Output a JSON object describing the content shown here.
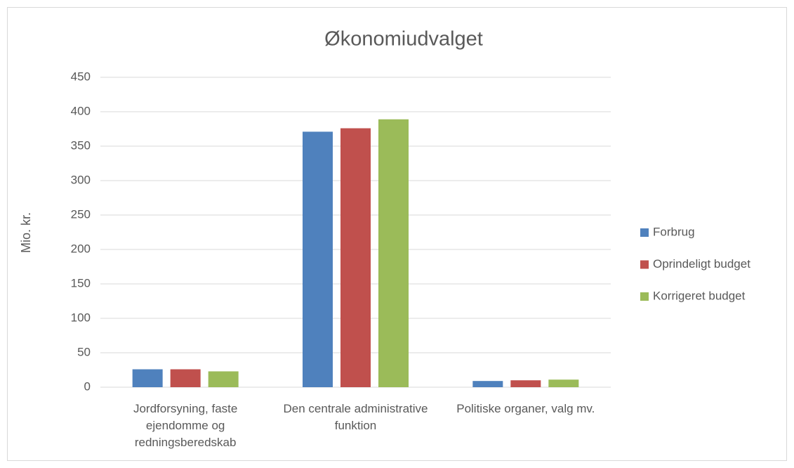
{
  "chart_data": {
    "type": "bar",
    "title": "Økonomiudvalget",
    "y_label": "Mio. kr.",
    "categories": [
      "Jordforsyning, faste ejendomme og redningsberedskab",
      "Den centrale administrative funktion",
      "Politiske organer, valg mv."
    ],
    "series": [
      {
        "name": "Forbrug",
        "color": "#4f81bd",
        "values": [
          26,
          371,
          9
        ]
      },
      {
        "name": "Oprindeligt budget",
        "color": "#c0504d",
        "values": [
          26,
          376,
          10
        ]
      },
      {
        "name": "Korrigeret budget",
        "color": "#9bbb59",
        "values": [
          23,
          389,
          11
        ]
      }
    ],
    "ylim": [
      0,
      450
    ],
    "yticks": [
      0,
      50,
      100,
      150,
      200,
      250,
      300,
      350,
      400,
      450
    ],
    "grid": true,
    "legend": "right"
  }
}
